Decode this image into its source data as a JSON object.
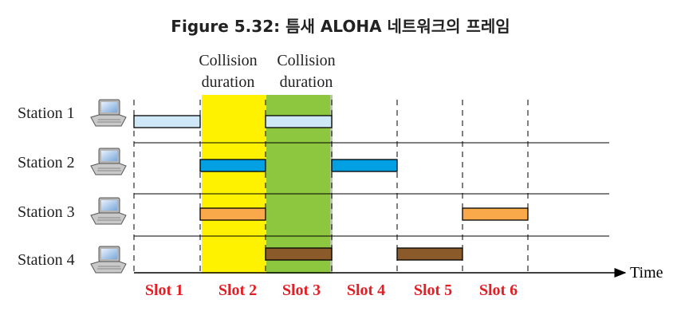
{
  "figure": {
    "title": "Figure 5.32:  틈새 ALOHA 네트워크의 프레임"
  },
  "annotations": {
    "collision_1": [
      "Collision",
      "duration"
    ],
    "collision_2": [
      "Collision",
      "duration"
    ]
  },
  "axis": {
    "time_label": "Time"
  },
  "stations": [
    {
      "label": "Station 1",
      "frames": [
        1,
        3
      ]
    },
    {
      "label": "Station 2",
      "frames": [
        2,
        4
      ]
    },
    {
      "label": "Station 3",
      "frames": [
        2,
        6
      ]
    },
    {
      "label": "Station 4",
      "frames": [
        3,
        5
      ]
    }
  ],
  "slots": [
    "Slot 1",
    "Slot 2",
    "Slot 3",
    "Slot 4",
    "Slot 5",
    "Slot 6"
  ],
  "collision_slots": [
    2,
    3
  ],
  "colors": {
    "station_1": "#cfe8f8",
    "station_2": "#00a0e3",
    "station_3": "#f9a94a",
    "station_4": "#8b5a2b",
    "collision_slot_2": "#fff200",
    "collision_slot_3": "#8dc63f",
    "slot_label": "#e31e24"
  }
}
